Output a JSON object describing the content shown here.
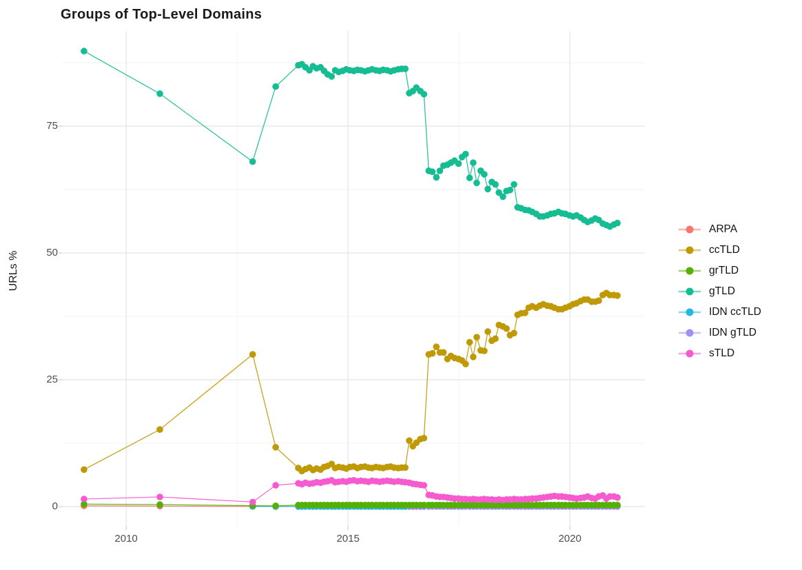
{
  "chart_data": {
    "type": "line",
    "title": "Groups of Top-Level Domains",
    "xlabel": "",
    "ylabel": "URLs %",
    "xlim": [
      2008.57,
      2021.69
    ],
    "ylim": [
      -3.8,
      93.75
    ],
    "x_ticks": [
      2010,
      2015,
      2020
    ],
    "x_minor_ticks": [
      2012.5,
      2017.5
    ],
    "y_ticks": [
      0,
      25,
      50,
      75
    ],
    "y_minor_ticks": [
      12.5,
      37.5,
      62.5,
      87.5
    ],
    "grid": "major+minor",
    "legend_position": "right",
    "palette": {
      "background": "#FFFFFF",
      "grid_major": "#E4E4E4",
      "grid_minor": "#F1F1F1",
      "tick_mark": "#CFCFCF",
      "axis_text": "#4D4D4D",
      "title_text": "#1A1A1A"
    },
    "x_segments": {
      "sparse": [
        2009.05,
        2010.76,
        2012.85,
        2013.37
      ],
      "dense1": [
        2013.88,
        2013.96,
        2014.04,
        2014.13,
        2014.21,
        2014.29,
        2014.38,
        2014.46,
        2014.54,
        2014.63,
        2014.71,
        2014.79,
        2014.88,
        2014.96,
        2015.04,
        2015.13,
        2015.21,
        2015.29,
        2015.38,
        2015.46,
        2015.54,
        2015.63,
        2015.71,
        2015.79,
        2015.88,
        2015.96,
        2016.04,
        2016.13,
        2016.21,
        2016.29
      ],
      "mid": [
        2016.38,
        2016.46,
        2016.54,
        2016.63,
        2016.71
      ],
      "dense2": [
        2016.82,
        2016.9,
        2016.99,
        2017.07,
        2017.15,
        2017.24,
        2017.32,
        2017.4,
        2017.49,
        2017.57,
        2017.65,
        2017.74,
        2017.82,
        2017.9,
        2017.99,
        2018.07,
        2018.15,
        2018.24,
        2018.32,
        2018.4,
        2018.49,
        2018.57,
        2018.65,
        2018.74,
        2018.82,
        2018.9,
        2018.99,
        2019.07,
        2019.15,
        2019.24,
        2019.32,
        2019.4,
        2019.49,
        2019.57,
        2019.65,
        2019.74,
        2019.82,
        2019.9,
        2019.99,
        2020.07,
        2020.15,
        2020.24,
        2020.32,
        2020.4,
        2020.49,
        2020.57,
        2020.65,
        2020.74,
        2020.82,
        2020.9,
        2020.99,
        2021.07
      ]
    },
    "series": [
      {
        "name": "ARPA",
        "color": "#F8766D",
        "z": 0,
        "segments": {
          "sparse": [
            0.15,
            0.1,
            0.05,
            0.03
          ],
          "dense1": [
            0.02
          ]
        }
      },
      {
        "name": "ccTLD",
        "color": "#BF9A06",
        "z": 3,
        "segments": {
          "sparse": [
            7.3,
            15.2,
            30.0,
            11.7
          ],
          "dense1": [
            7.6,
            7.0,
            7.4,
            7.7,
            7.2,
            7.5,
            7.3,
            7.8,
            8.0,
            8.4,
            7.6,
            7.8,
            7.7,
            7.5,
            7.8,
            7.9,
            7.6,
            7.8,
            7.9,
            7.7,
            7.6,
            7.8,
            7.7,
            7.6,
            7.8,
            7.9,
            7.7,
            7.6,
            7.7,
            7.7
          ],
          "mid": [
            13.0,
            11.9,
            12.6,
            13.3,
            13.5
          ],
          "dense2": [
            30.0,
            30.2,
            31.5,
            30.4,
            30.4,
            29.1,
            29.7,
            29.3,
            29.1,
            28.8,
            28.1,
            32.4,
            29.5,
            33.4,
            30.8,
            30.7,
            34.5,
            32.7,
            33.1,
            35.8,
            35.5,
            35.1,
            33.8,
            34.2,
            37.8,
            38.1,
            38.2,
            39.2,
            39.5,
            39.2,
            39.6,
            39.9,
            39.6,
            39.5,
            39.2,
            38.9,
            38.9,
            39.2,
            39.5,
            39.9,
            40.1,
            40.5,
            40.8,
            40.8,
            40.4,
            40.4,
            40.6,
            41.7,
            42.1,
            41.7,
            41.7,
            41.6
          ]
        }
      },
      {
        "name": "grTLD",
        "color": "#54B005",
        "z": 5,
        "segments": {
          "sparse": [
            0.5,
            0.4,
            0.2,
            0.15
          ],
          "dense1": 0.3,
          "mid": 0.3,
          "dense2": 0.3
        }
      },
      {
        "name": "gTLD",
        "color": "#16BD92",
        "z": 4,
        "segments": {
          "sparse": [
            89.8,
            81.4,
            68.0,
            82.8
          ],
          "dense1": [
            87.0,
            87.2,
            86.6,
            86.0,
            86.8,
            86.4,
            86.6,
            85.9,
            85.2,
            84.8,
            86.0,
            85.7,
            85.9,
            86.2,
            86.0,
            85.9,
            86.1,
            86.0,
            85.8,
            86.0,
            86.2,
            86.0,
            85.9,
            86.1,
            86.0,
            85.8,
            86.0,
            86.2,
            86.3,
            86.3
          ],
          "mid": [
            81.5,
            81.9,
            82.6,
            81.9,
            81.3
          ],
          "dense2": [
            66.2,
            66.0,
            64.9,
            66.2,
            67.2,
            67.4,
            67.8,
            68.2,
            67.6,
            68.9,
            69.5,
            64.8,
            67.8,
            63.8,
            66.2,
            65.5,
            62.6,
            64.0,
            63.5,
            61.9,
            61.1,
            62.2,
            62.4,
            63.5,
            59.0,
            58.8,
            58.5,
            58.4,
            58.1,
            57.7,
            57.2,
            57.2,
            57.4,
            57.7,
            57.8,
            58.1,
            57.8,
            57.7,
            57.4,
            57.2,
            57.4,
            57.0,
            56.5,
            56.1,
            56.4,
            56.8,
            56.5,
            55.8,
            55.5,
            55.2,
            55.6,
            55.9
          ]
        }
      },
      {
        "name": "IDN ccTLD",
        "color": "#23B7E8",
        "z": 1,
        "segments": {
          "sparse": [
            null,
            null,
            0.05,
            0.02
          ],
          "dense1": 0.02,
          "mid": 0.02,
          "dense2": 0.06
        }
      },
      {
        "name": "IDN gTLD",
        "color": "#A38FF0",
        "z": 2,
        "segments": {
          "mid": 0.02,
          "dense2": 0.03
        }
      },
      {
        "name": "sTLD",
        "color": "#F55BCF",
        "z": 6,
        "segments": {
          "sparse": [
            1.5,
            1.9,
            0.9,
            4.2
          ],
          "dense1": [
            4.6,
            4.4,
            4.7,
            4.5,
            4.6,
            4.8,
            4.7,
            4.9,
            5.0,
            5.2,
            4.8,
            4.9,
            5.0,
            4.9,
            5.1,
            5.2,
            5.0,
            5.1,
            5.0,
            4.9,
            5.1,
            5.0,
            4.9,
            5.0,
            5.1,
            5.0,
            4.9,
            5.0,
            4.9,
            4.8
          ],
          "mid": [
            4.7,
            4.5,
            4.4,
            4.3,
            4.2
          ],
          "dense2": [
            2.3,
            2.2,
            2.0,
            1.9,
            1.9,
            1.8,
            1.7,
            1.6,
            1.6,
            1.5,
            1.5,
            1.4,
            1.5,
            1.4,
            1.4,
            1.5,
            1.4,
            1.4,
            1.3,
            1.4,
            1.3,
            1.4,
            1.4,
            1.5,
            1.4,
            1.4,
            1.5,
            1.5,
            1.6,
            1.6,
            1.7,
            1.8,
            1.9,
            2.0,
            2.1,
            2.0,
            2.0,
            1.9,
            1.8,
            1.7,
            1.6,
            1.7,
            1.8,
            2.0,
            1.7,
            1.6,
            2.0,
            2.2,
            1.6,
            2.0,
            2.0,
            1.8
          ]
        }
      }
    ]
  }
}
